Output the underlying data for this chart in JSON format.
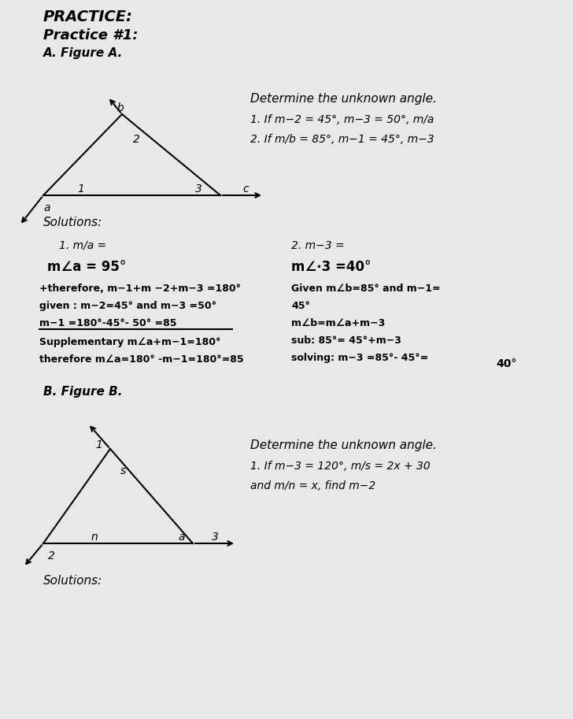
{
  "bg_color": "#e8e8e8",
  "title": "PRACTICE:",
  "practice_label": "Practice #1:",
  "fig_a_label": "A. Figure A.",
  "fig_b_label": "B. Figure B.",
  "determine_text_a": "Determine the unknown angle.",
  "prob1_a": "1. If m−2 = 45°, m−3 = 50°, m∕a",
  "prob2_a": "2. If m∕b = 85°, m−1 = 45°, m−3",
  "solutions_label": "Solutions:",
  "sol1_label": "1. m∕a =",
  "sol2_label": "2. m−3 =",
  "sol1_answer": "m∠a = 95°",
  "sol2_answer": "m∠∙3 =40°",
  "sol1_line2": "+therefore, m−1+m −2+m−3 =180°",
  "sol2_line2": "Given m∠b=85° and m−1=",
  "sol1_line3": "given : m−2=45° and m−3 =50°",
  "sol2_line3": "45°",
  "sol1_line4": "m−1 =180°-45°- 50° =85",
  "sol2_line4": "m∠b=m∠a+m−3",
  "sol1_line5": "Supplementary m∠a+m−1=180°",
  "sol2_line5": "sub: 85°= 45°+m−3",
  "sol1_line6": "therefore m∠a=180° -m−1=180°=85",
  "sol2_line6": "solving: m−3 =85°- 45°=",
  "sol2_line6b": "40°",
  "determine_text_b": "Determine the unknown angle.",
  "prob1_b": "1. If m−3 = 120°, m∕s = 2x + 30",
  "prob1_b2": "and m∕n = x, find m−2",
  "solutions_b_label": "Solutions:"
}
